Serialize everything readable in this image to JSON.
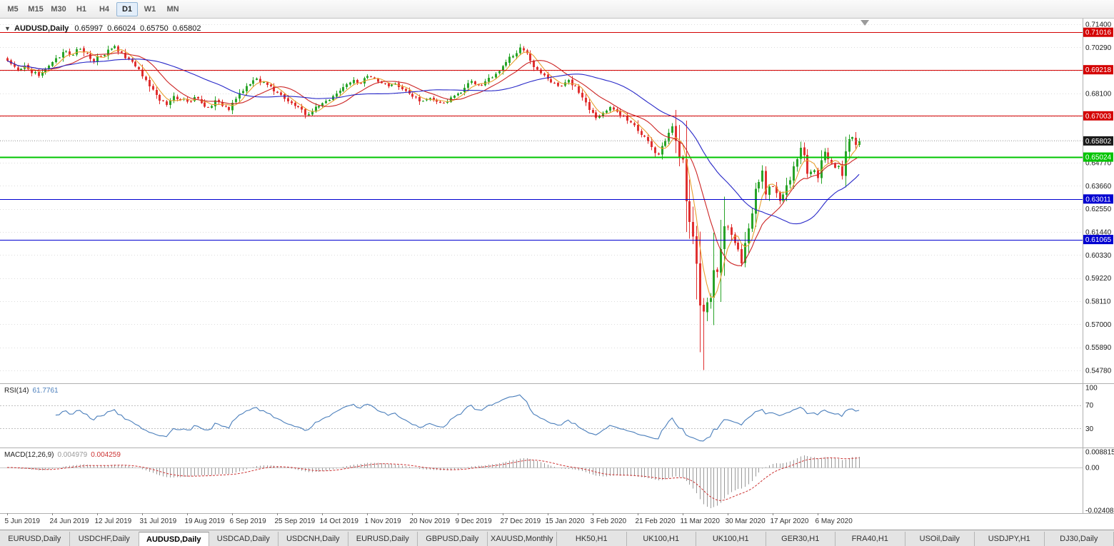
{
  "toolbar": {
    "timeframes": [
      "M5",
      "M15",
      "M30",
      "H1",
      "H4",
      "D1",
      "W1",
      "MN"
    ],
    "active": "D1"
  },
  "chart": {
    "symbol": "AUDUSD,Daily",
    "collapse_icon": "▼",
    "ohlc": {
      "open": "0.65997",
      "high": "0.66024",
      "low": "0.65750",
      "close": "0.65802"
    },
    "current_price": {
      "value": 0.65802,
      "label": "0.65802",
      "badge_color": "#1a1a1a"
    },
    "hlines": [
      {
        "value": 0.71016,
        "label": "0.71016",
        "color": "#d40000",
        "width": 1
      },
      {
        "value": 0.69218,
        "label": "0.69218",
        "color": "#d40000",
        "width": 1
      },
      {
        "value": 0.67003,
        "label": "0.67003",
        "color": "#d40000",
        "width": 1
      },
      {
        "value": 0.65024,
        "label": "0.65024",
        "color": "#00c400",
        "width": 2
      },
      {
        "value": 0.63011,
        "label": "0.63011",
        "color": "#0000d0",
        "width": 1
      },
      {
        "value": 0.61065,
        "label": "0.61065",
        "color": "#0000d0",
        "width": 1
      }
    ],
    "ma": [
      {
        "name": "ma-fast",
        "period": 5,
        "color": "#e8a030"
      },
      {
        "name": "ma-mid",
        "period": 13,
        "color": "#cc2424"
      },
      {
        "name": "ma-slow",
        "period": 34,
        "color": "#2828c8"
      }
    ]
  },
  "rsi": {
    "name": "RSI(14)",
    "value": "61.7761",
    "period": 14,
    "color": "#4a7ebb",
    "levels": [
      70,
      30
    ],
    "axis": [
      {
        "label": "100",
        "v": 100
      },
      {
        "label": "70",
        "v": 70
      },
      {
        "label": "30",
        "v": 30
      }
    ]
  },
  "macd": {
    "name": "MACD(12,26,9)",
    "value_main": "0.004979",
    "value_signal": "0.004259",
    "params": [
      12,
      26,
      9
    ],
    "hist_color": "#9a9a9a",
    "signal_color": "#cc3333",
    "scale": {
      "max": 0.008815,
      "min": -0.02408
    },
    "axis": [
      {
        "label": "0.008815",
        "v": 0.008815
      },
      {
        "label": "0.00",
        "v": 0
      },
      {
        "label": "-0.02408",
        "v": -0.02408
      }
    ]
  },
  "tabs": {
    "active_index": 2,
    "items": [
      "EURUSD,Daily",
      "USDCHF,Daily",
      "AUDUSD,Daily",
      "USDCAD,Daily",
      "USDCNH,Daily",
      "EURUSD,Daily",
      "GBPUSD,Daily",
      "XAUUSD,Monthly",
      "HK50,H1",
      "UK100,H1",
      "UK100,H1",
      "GER30,H1",
      "FRA40,H1",
      "USOil,Daily",
      "USDJPY,H1",
      "DJ30,Daily"
    ],
    "scroll_marker": ""
  },
  "chart_data": {
    "type": "candlestick",
    "title": "AUDUSD,Daily",
    "symbol": "AUDUSD",
    "timeframe": "Daily",
    "ylim": [
      0.5478,
      0.714
    ],
    "n_candles": 247,
    "seed": 7,
    "candles_per_label": 13,
    "colors": {
      "bull": "#28a428",
      "bear": "#e03030",
      "grid": "#dcdcdc"
    },
    "y_tick_labels": [
      "0.71400",
      "0.70290",
      "0.69180",
      "0.68100",
      "0.66990",
      "0.65880",
      "0.64770",
      "0.63660",
      "0.62550",
      "0.61440",
      "0.60330",
      "0.59220",
      "0.58110",
      "0.57000",
      "0.55890",
      "0.54780"
    ],
    "x_tick_labels": [
      "5 Jun 2019",
      "24 Jun 2019",
      "12 Jul 2019",
      "31 Jul 2019",
      "19 Aug 2019",
      "6 Sep 2019",
      "25 Sep 2019",
      "14 Oct 2019",
      "1 Nov 2019",
      "20 Nov 2019",
      "9 Dec 2019",
      "27 Dec 2019",
      "15 Jan 2020",
      "3 Feb 2020",
      "21 Feb 2020",
      "11 Mar 2020",
      "30 Mar 2020",
      "17 Apr 2020",
      "6 May 2020"
    ],
    "close_anchors": [
      [
        0,
        0.6965
      ],
      [
        1,
        0.695
      ],
      [
        3,
        0.6918
      ],
      [
        5,
        0.6942
      ],
      [
        7,
        0.6905
      ],
      [
        9,
        0.6892
      ],
      [
        11,
        0.6922
      ],
      [
        13,
        0.6958
      ],
      [
        15,
        0.698
      ],
      [
        17,
        0.7012
      ],
      [
        19,
        0.6993
      ],
      [
        21,
        0.7022
      ],
      [
        23,
        0.7
      ],
      [
        25,
        0.6962
      ],
      [
        27,
        0.6988
      ],
      [
        29,
        0.7018
      ],
      [
        31,
        0.7035
      ],
      [
        33,
        0.7005
      ],
      [
        35,
        0.6972
      ],
      [
        37,
        0.6938
      ],
      [
        39,
        0.689
      ],
      [
        41,
        0.6842
      ],
      [
        43,
        0.68
      ],
      [
        46,
        0.6752
      ],
      [
        48,
        0.6795
      ],
      [
        50,
        0.6778
      ],
      [
        52,
        0.6768
      ],
      [
        54,
        0.679
      ],
      [
        56,
        0.6762
      ],
      [
        58,
        0.6742
      ],
      [
        60,
        0.6775
      ],
      [
        62,
        0.6748
      ],
      [
        64,
        0.6728
      ],
      [
        66,
        0.6782
      ],
      [
        68,
        0.682
      ],
      [
        70,
        0.6852
      ],
      [
        72,
        0.688
      ],
      [
        74,
        0.6862
      ],
      [
        76,
        0.6842
      ],
      [
        78,
        0.6812
      ],
      [
        80,
        0.6782
      ],
      [
        82,
        0.6762
      ],
      [
        84,
        0.6742
      ],
      [
        86,
        0.6705
      ],
      [
        88,
        0.6722
      ],
      [
        90,
        0.6748
      ],
      [
        92,
        0.6772
      ],
      [
        94,
        0.6795
      ],
      [
        96,
        0.6822
      ],
      [
        98,
        0.6852
      ],
      [
        100,
        0.6872
      ],
      [
        102,
        0.6855
      ],
      [
        104,
        0.6892
      ],
      [
        106,
        0.6878
      ],
      [
        108,
        0.6858
      ],
      [
        110,
        0.6842
      ],
      [
        112,
        0.6855
      ],
      [
        114,
        0.6828
      ],
      [
        116,
        0.6808
      ],
      [
        118,
        0.6788
      ],
      [
        120,
        0.6772
      ],
      [
        122,
        0.6785
      ],
      [
        124,
        0.6768
      ],
      [
        126,
        0.6762
      ],
      [
        128,
        0.6788
      ],
      [
        130,
        0.6808
      ],
      [
        132,
        0.6835
      ],
      [
        134,
        0.6868
      ],
      [
        136,
        0.685
      ],
      [
        138,
        0.6865
      ],
      [
        140,
        0.6885
      ],
      [
        142,
        0.6915
      ],
      [
        144,
        0.6958
      ],
      [
        146,
        0.6988
      ],
      [
        148,
        0.7028
      ],
      [
        150,
        0.7002
      ],
      [
        152,
        0.6935
      ],
      [
        154,
        0.6905
      ],
      [
        156,
        0.6878
      ],
      [
        158,
        0.6858
      ],
      [
        160,
        0.6845
      ],
      [
        162,
        0.6872
      ],
      [
        164,
        0.6845
      ],
      [
        166,
        0.6788
      ],
      [
        168,
        0.6728
      ],
      [
        170,
        0.669
      ],
      [
        172,
        0.6715
      ],
      [
        174,
        0.6742
      ],
      [
        176,
        0.672
      ],
      [
        178,
        0.6698
      ],
      [
        180,
        0.6668
      ],
      [
        182,
        0.6627
      ],
      [
        184,
        0.66
      ],
      [
        186,
        0.655
      ],
      [
        188,
        0.6515
      ],
      [
        190,
        0.658
      ],
      [
        192,
        0.665
      ],
      [
        193,
        0.658
      ],
      [
        194,
        0.65
      ],
      [
        195,
        0.649
      ],
      [
        196,
        0.629
      ],
      [
        197,
        0.619
      ],
      [
        198,
        0.612
      ],
      [
        199,
        0.599
      ],
      [
        200,
        0.579
      ],
      [
        201,
        0.576
      ],
      [
        202,
        0.5805
      ],
      [
        203,
        0.5825
      ],
      [
        204,
        0.596
      ],
      [
        205,
        0.595
      ],
      [
        206,
        0.606
      ],
      [
        207,
        0.617
      ],
      [
        208,
        0.6165
      ],
      [
        209,
        0.613
      ],
      [
        210,
        0.609
      ],
      [
        211,
        0.6058
      ],
      [
        212,
        0.5992
      ],
      [
        213,
        0.609
      ],
      [
        214,
        0.616
      ],
      [
        215,
        0.6232
      ],
      [
        216,
        0.635
      ],
      [
        217,
        0.6382
      ],
      [
        218,
        0.6438
      ],
      [
        219,
        0.6322
      ],
      [
        220,
        0.636
      ],
      [
        221,
        0.6362
      ],
      [
        222,
        0.633
      ],
      [
        223,
        0.6292
      ],
      [
        224,
        0.6322
      ],
      [
        225,
        0.6368
      ],
      [
        226,
        0.6392
      ],
      [
        227,
        0.6458
      ],
      [
        228,
        0.6492
      ],
      [
        229,
        0.6548
      ],
      [
        230,
        0.6512
      ],
      [
        231,
        0.6422
      ],
      [
        232,
        0.6432
      ],
      [
        233,
        0.644
      ],
      [
        234,
        0.6402
      ],
      [
        235,
        0.6488
      ],
      [
        236,
        0.6528
      ],
      [
        237,
        0.6492
      ],
      [
        238,
        0.6472
      ],
      [
        239,
        0.6452
      ],
      [
        240,
        0.646
      ],
      [
        241,
        0.6412
      ],
      [
        242,
        0.653
      ],
      [
        243,
        0.6588
      ],
      [
        244,
        0.6598
      ],
      [
        245,
        0.656
      ],
      [
        246,
        0.65802
      ]
    ],
    "wick_overrides": [
      {
        "i": 201,
        "low": 0.548
      },
      {
        "i": 148,
        "high": 0.7045
      },
      {
        "i": 31,
        "high": 0.7042
      }
    ]
  }
}
